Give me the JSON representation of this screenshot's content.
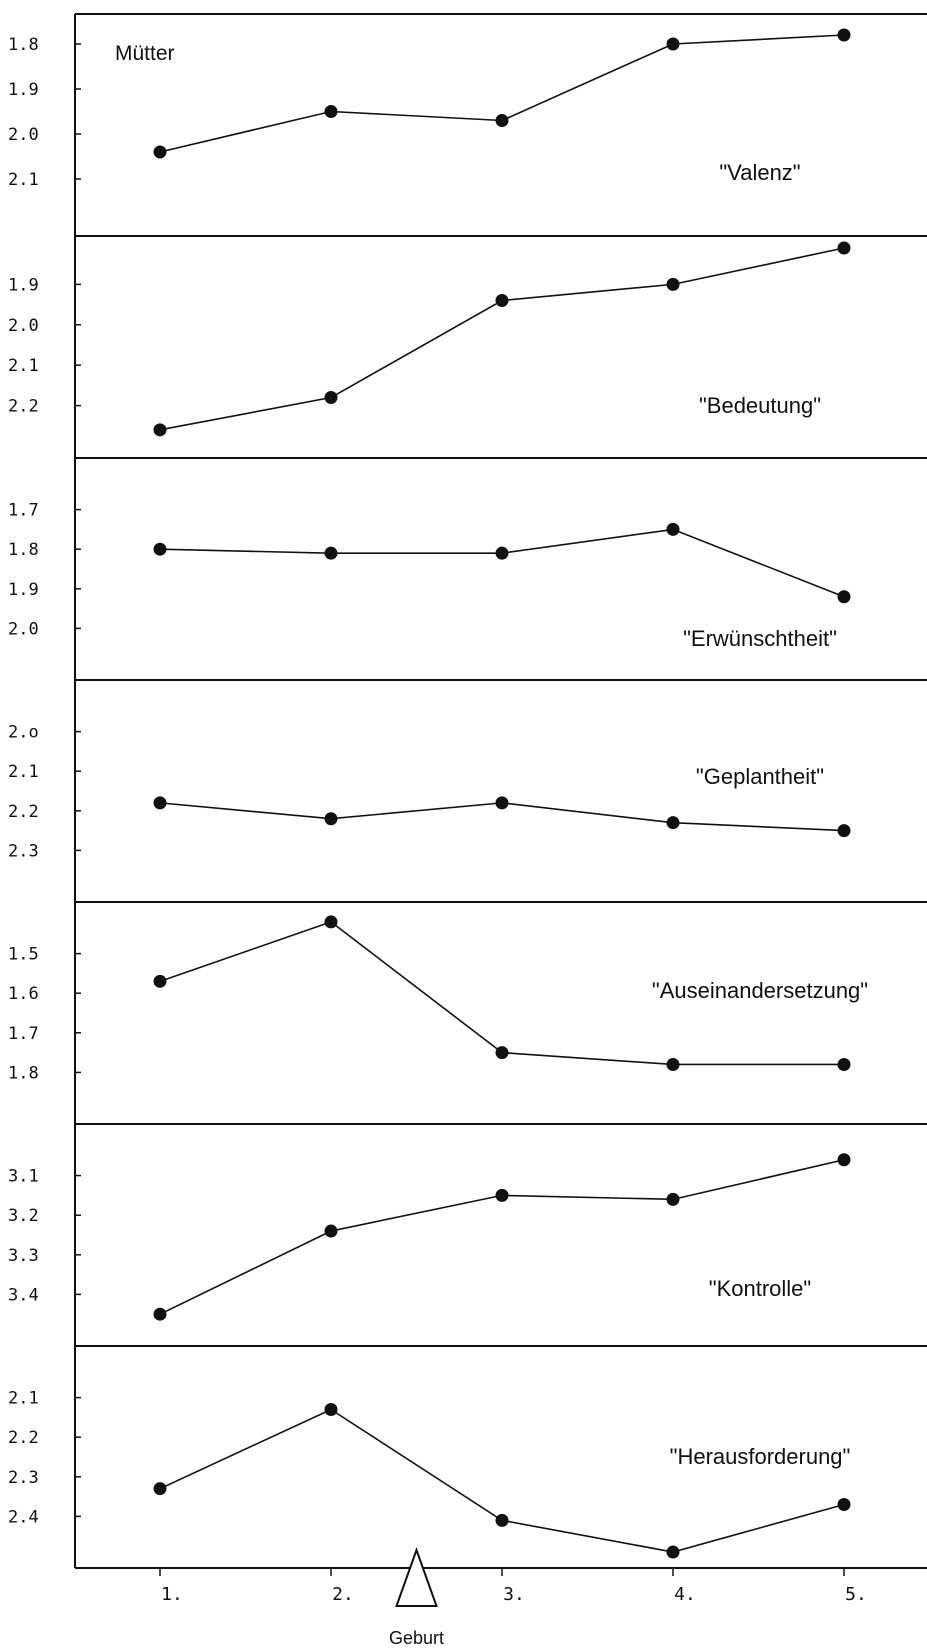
{
  "header": "Mütter",
  "marker": {
    "label": "Geburt",
    "position": 2.5
  },
  "chart_data": {
    "type": "line",
    "x_categories": [
      "1.",
      "2.",
      "3.",
      "4.",
      "5."
    ],
    "x": [
      1,
      2,
      3,
      4,
      5
    ],
    "panels": [
      {
        "title": "\"Valenz\"",
        "yticks": [
          "1.8",
          "1.9",
          "2.0",
          "2.1"
        ],
        "ylim": [
          1.76,
          2.2
        ],
        "y_inverted": true,
        "values": [
          2.04,
          1.95,
          1.97,
          1.8,
          1.78
        ]
      },
      {
        "title": "\"Bedeutung\"",
        "yticks": [
          "1.9",
          "2.0",
          "2.1",
          "2.2"
        ],
        "ylim": [
          1.81,
          2.3
        ],
        "y_inverted": true,
        "values": [
          2.26,
          2.18,
          1.94,
          1.9,
          1.81
        ]
      },
      {
        "title": "\"Erwünschtheit\"",
        "yticks": [
          "1.7",
          "1.8",
          "1.9",
          "2.0"
        ],
        "ylim": [
          1.6,
          2.1
        ],
        "y_inverted": true,
        "values": [
          1.8,
          1.81,
          1.81,
          1.75,
          1.92
        ]
      },
      {
        "title": "\"Geplantheit\"",
        "yticks": [
          "2.o",
          "2.1",
          "2.2",
          "2.3"
        ],
        "ylim": [
          1.9,
          2.4
        ],
        "y_inverted": true,
        "values": [
          2.18,
          2.22,
          2.18,
          2.23,
          2.25
        ]
      },
      {
        "title": "\"Auseinandersetzung\"",
        "yticks": [
          "1.5",
          "1.6",
          "1.7",
          "1.8"
        ],
        "ylim": [
          1.4,
          1.9
        ],
        "y_inverted": true,
        "values": [
          1.57,
          1.42,
          1.75,
          1.78,
          1.78
        ]
      },
      {
        "title": "\"Kontrolle\"",
        "yticks": [
          "3.1",
          "3.2",
          "3.3",
          "3.4"
        ],
        "ylim": [
          3.0,
          3.5
        ],
        "y_inverted": true,
        "values": [
          3.45,
          3.24,
          3.15,
          3.16,
          3.06
        ]
      },
      {
        "title": "\"Herausforderung\"",
        "yticks": [
          "2.1",
          "2.2",
          "2.3",
          "2.4"
        ],
        "ylim": [
          2.0,
          2.5
        ],
        "y_inverted": true,
        "values": [
          2.33,
          2.13,
          2.41,
          2.49,
          2.37
        ]
      }
    ]
  }
}
